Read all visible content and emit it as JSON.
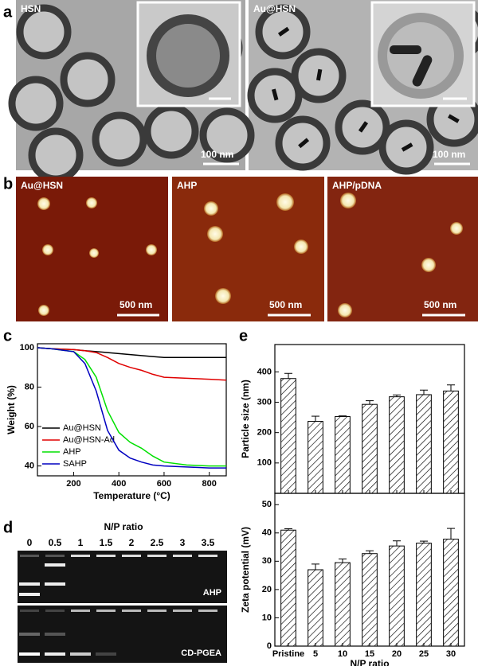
{
  "panels": {
    "a": {
      "label": "a",
      "images": [
        {
          "label": "HSN",
          "scale": "100 nm"
        },
        {
          "label": "Au@HSN",
          "scale": "100 nm"
        }
      ]
    },
    "b": {
      "label": "b",
      "images": [
        {
          "label": "Au@HSN",
          "scale": "500 nm"
        },
        {
          "label": "AHP",
          "scale": "500 nm"
        },
        {
          "label": "AHP/pDNA",
          "scale": "500 nm"
        }
      ]
    },
    "d": {
      "label": "d",
      "title": "N/P ratio",
      "lanes": [
        "0",
        "0.5",
        "1",
        "1.5",
        "2",
        "2.5",
        "3",
        "3.5"
      ],
      "gels": [
        "AHP",
        "CD-PGEA"
      ]
    }
  },
  "chart_data": [
    {
      "type": "line",
      "panel": "c",
      "xlabel": "Temperature (°C)",
      "ylabel": "Weight (%)",
      "x": [
        40,
        100,
        200,
        250,
        300,
        350,
        400,
        450,
        500,
        550,
        600,
        700,
        800,
        875
      ],
      "series": [
        {
          "name": "Au@HSN",
          "color": "#000000",
          "values": [
            100,
            99.5,
            99,
            98.5,
            98,
            97.5,
            97,
            96.5,
            96,
            95.5,
            95,
            95,
            95,
            95
          ]
        },
        {
          "name": "Au@HSN-Ad",
          "color": "#e00000",
          "values": [
            100,
            99.5,
            99,
            98.5,
            97.5,
            95,
            92,
            90,
            88.5,
            86.5,
            85,
            84.5,
            84,
            83.5
          ]
        },
        {
          "name": "AHP",
          "color": "#00e000",
          "values": [
            100,
            99.5,
            98,
            94,
            85,
            68,
            57,
            52,
            49,
            45,
            42,
            40.5,
            40,
            40
          ]
        },
        {
          "name": "SAHP",
          "color": "#0000c0",
          "values": [
            100,
            99.5,
            98,
            92,
            78,
            58,
            48,
            44,
            42,
            40.5,
            40,
            39.5,
            39,
            39
          ]
        }
      ],
      "xlim": [
        40,
        875
      ],
      "xticks": [
        200,
        400,
        600,
        800
      ],
      "ylim": [
        35,
        102
      ],
      "yticks": [
        40,
        60,
        80,
        100
      ],
      "legend": "lower-left"
    },
    {
      "type": "bar",
      "panel": "e",
      "ylabel": "Particle size (nm)",
      "values": [
        378,
        237,
        253,
        293,
        318,
        325,
        337
      ],
      "errors": [
        17,
        17,
        2,
        12,
        6,
        15,
        20
      ],
      "ylim": [
        0,
        490
      ],
      "yticks": [
        100,
        200,
        300,
        400
      ],
      "color": "#000000"
    },
    {
      "type": "bar",
      "ylabel": "Zeta potential (mV)",
      "xlabel": "N/P ratio",
      "categories": [
        "Pristine",
        "5",
        "10",
        "15",
        "20",
        "25",
        "30"
      ],
      "values": [
        41,
        27,
        29.5,
        32.7,
        35.4,
        36.4,
        37.8
      ],
      "errors": [
        0.5,
        2,
        1.3,
        1,
        1.8,
        0.7,
        3.8
      ],
      "ylim": [
        0,
        54
      ],
      "yticks": [
        0,
        10,
        20,
        30,
        40,
        50
      ],
      "color": "#000000"
    }
  ]
}
